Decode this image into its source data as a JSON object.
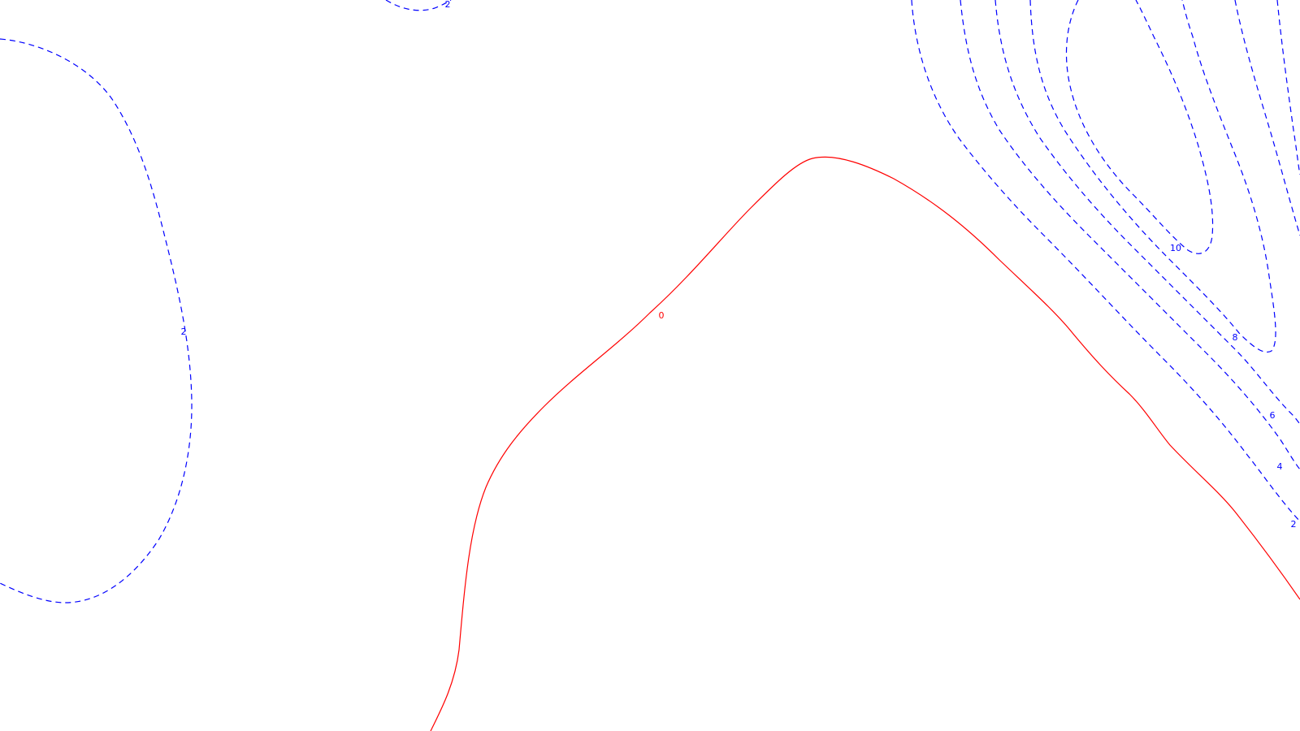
{
  "map": {
    "background": "#ffffff",
    "zero_color": "#ff0000",
    "positive_color": "#0000ff",
    "contours": [
      {
        "level": 0,
        "label": "0",
        "style": "solid"
      },
      {
        "level": 2,
        "label": "2",
        "style": "dashed"
      },
      {
        "level": 2,
        "label": "2",
        "style": "dashed"
      },
      {
        "level": 2,
        "label": "2",
        "style": "dashed"
      },
      {
        "level": 4,
        "label": "4",
        "style": "dashed"
      },
      {
        "level": 6,
        "label": "6",
        "style": "dashed"
      },
      {
        "level": 8,
        "label": "8",
        "style": "dashed"
      },
      {
        "level": 10,
        "label": "10",
        "style": "dashed"
      }
    ]
  }
}
